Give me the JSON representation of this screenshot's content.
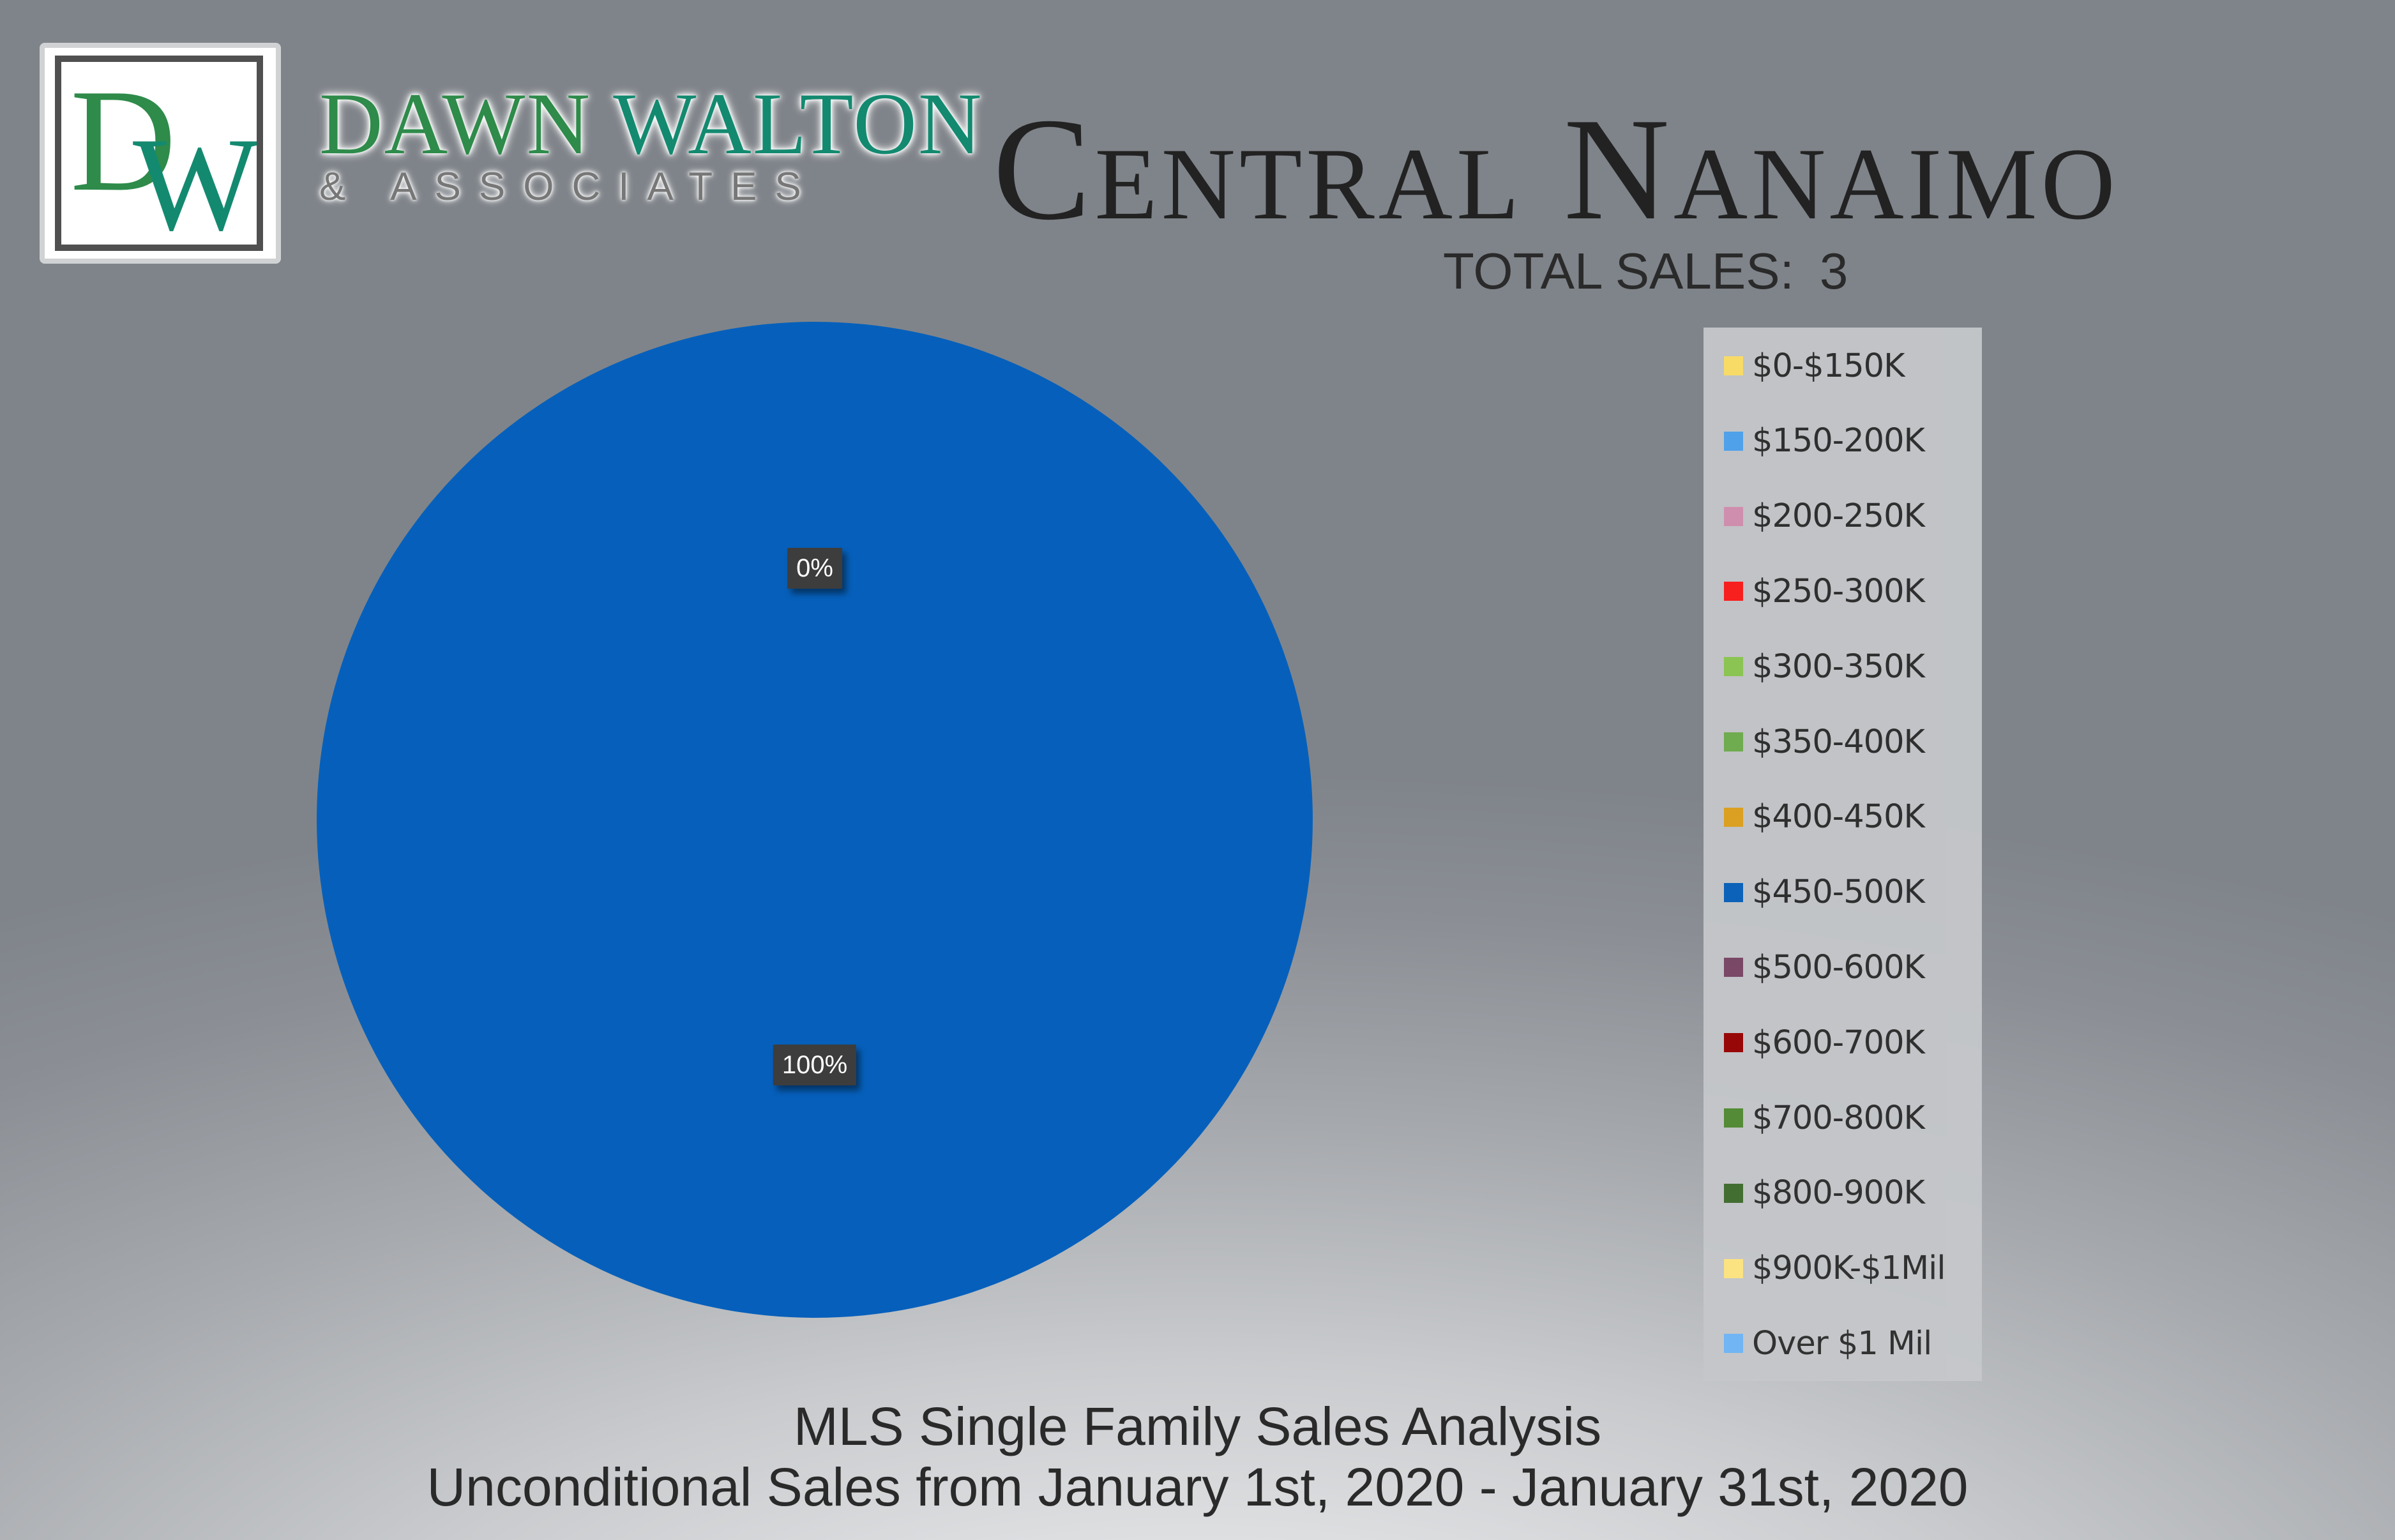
{
  "brand": {
    "monogram": "DW",
    "name_first": "DAWN",
    "name_second": "WALTON",
    "subtitle": "& ASSOCIATES"
  },
  "header": {
    "title": "Central Nanaimo",
    "total_sales_label": "TOTAL SALES:",
    "total_sales_value": "3"
  },
  "chart_data": {
    "type": "pie",
    "title": "Central Nanaimo",
    "subtitle": "TOTAL SALES: 3",
    "categories": [
      "$0-$150K",
      "$150-200K",
      "$200-250K",
      "$250-300K",
      "$300-350K",
      "$350-400K",
      "$400-450K",
      "$450-500K",
      "$500-600K",
      "$600-700K",
      "$700-800K",
      "$800-900K",
      "$900K-$1Mil",
      "Over $1 Mil"
    ],
    "values": [
      0,
      0,
      0,
      0,
      0,
      0,
      0,
      100,
      0,
      0,
      0,
      0,
      0,
      0
    ],
    "colors": [
      "#ffe066",
      "#4da3f0",
      "#d58fb0",
      "#ff1a1a",
      "#8cc850",
      "#6fae4c",
      "#e0a21c",
      "#0660bb",
      "#7a4565",
      "#990000",
      "#4f8a30",
      "#3e6b2c",
      "#ffe680",
      "#6db5f8"
    ],
    "data_labels": [
      {
        "text": "0%"
      },
      {
        "text": "100%"
      }
    ],
    "legend_position": "right"
  },
  "footer": {
    "line1": "MLS Single Family Sales Analysis",
    "line2": "Unconditional Sales from January 1st, 2020 - January 31st, 2020"
  }
}
